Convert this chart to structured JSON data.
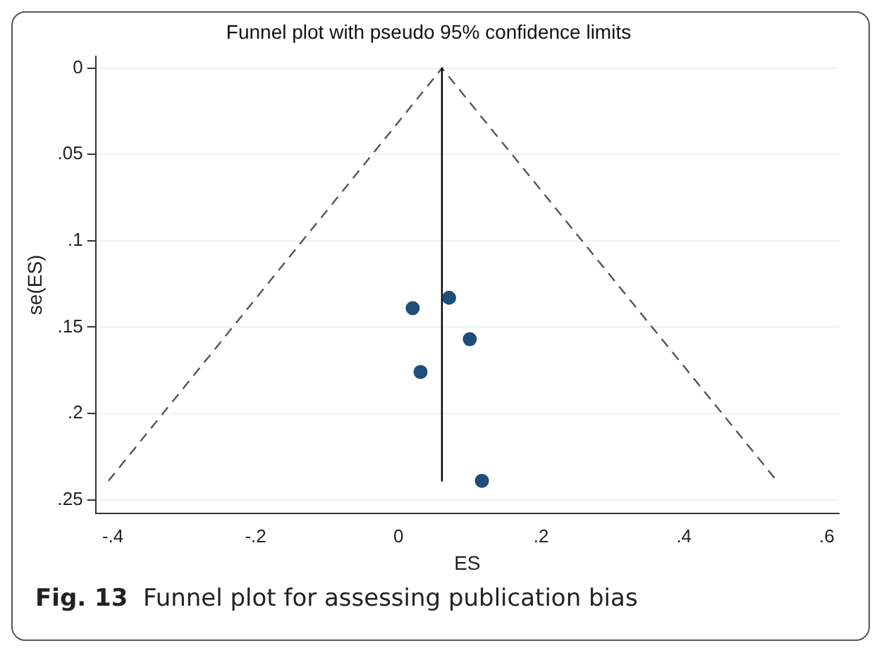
{
  "chart_data": {
    "type": "scatter",
    "title": "Funnel plot with pseudo 95% confidence limits",
    "xlabel": "ES",
    "ylabel": "se(ES)",
    "annotations": [
      "Fig. 13  Funnel plot for assessing publication bias"
    ],
    "series": [
      {
        "type": "scatter",
        "color": "#1f4e79",
        "x": [
          0.071,
          0.02,
          0.1,
          0.031,
          0.117
        ],
        "values": [
          0.133,
          0.139,
          0.157,
          0.176,
          0.239
        ],
        "marker": "circle"
      },
      {
        "type": "line",
        "color": "#000000",
        "x": [
          0.061,
          0.061
        ],
        "values": [
          0,
          0.239
        ],
        "marker": "none",
        "line_style": "solid"
      },
      {
        "type": "line",
        "color": "#555555",
        "x": [
          -0.406,
          0.061,
          0.53
        ],
        "values": [
          0.239,
          0,
          0.239
        ],
        "marker": "none",
        "line_style": "dashed"
      }
    ],
    "xlim": [
      -0.424,
      0.617
    ],
    "ylim": [
      0.258,
      -0.007
    ],
    "xticks": [
      {
        "value": -0.4,
        "label": "-.4"
      },
      {
        "value": -0.2,
        "label": "-.2"
      },
      0,
      {
        "value": 0.2,
        "label": ".2"
      },
      {
        "value": 0.4,
        "label": ".4"
      },
      {
        "value": 0.6,
        "label": ".6"
      }
    ],
    "yticks": [
      0,
      {
        "value": 0.05,
        "label": ".05"
      },
      {
        "value": 0.1,
        "label": ".1"
      },
      {
        "value": 0.15,
        "label": ".15"
      },
      {
        "value": 0.2,
        "label": ".2"
      },
      {
        "value": 0.25,
        "label": ".25"
      }
    ],
    "grid": "y",
    "legend": false
  }
}
